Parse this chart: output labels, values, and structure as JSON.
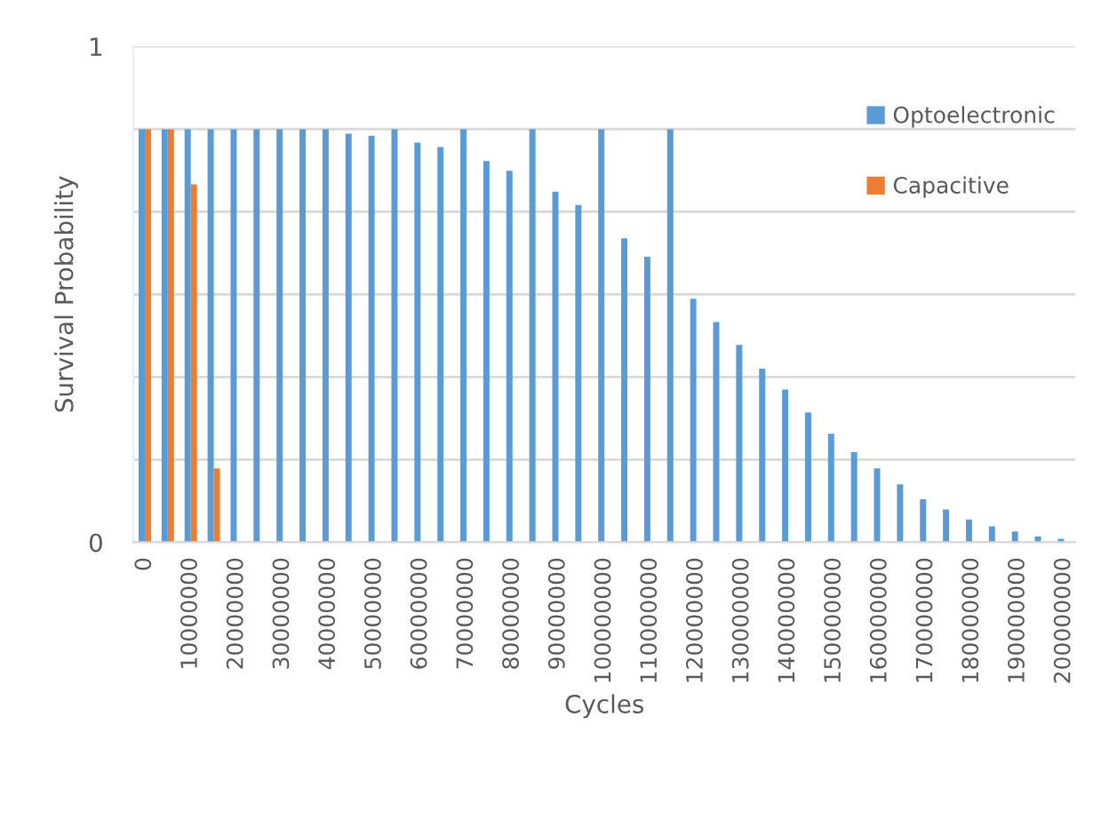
{
  "chart_data": {
    "type": "bar",
    "xlabel": "Cycles",
    "ylabel": "Survival Probability",
    "categories": [
      "0",
      null,
      "10000000",
      null,
      "20000000",
      null,
      "30000000",
      null,
      "40000000",
      null,
      "50000000",
      null,
      "60000000",
      null,
      "70000000",
      null,
      "80000000",
      null,
      "90000000",
      null,
      "100000000",
      null,
      "110000000",
      null,
      "120000000",
      null,
      "130000000",
      null,
      "140000000",
      null,
      "150000000",
      null,
      "160000000",
      null,
      "170000000",
      null,
      "180000000",
      null,
      "190000000",
      null,
      "200000000"
    ],
    "series": [
      {
        "name": "Optoelectronic",
        "color": "#5b9bd5",
        "values": [
          0.833,
          0.833,
          0.833,
          0.833,
          0.833,
          0.833,
          0.833,
          0.833,
          0.833,
          0.824,
          0.82,
          0.833,
          0.806,
          0.797,
          0.833,
          0.769,
          0.749,
          0.833,
          0.707,
          0.68,
          0.833,
          0.613,
          0.576,
          0.833,
          0.491,
          0.444,
          0.398,
          0.35,
          0.308,
          0.262,
          0.219,
          0.182,
          0.149,
          0.117,
          0.087,
          0.066,
          0.046,
          0.032,
          0.022,
          0.012,
          0.007
        ]
      },
      {
        "name": "Capacitive",
        "color": "#ed7d31",
        "values": [
          0.833,
          0.833,
          0.722,
          0.149,
          null,
          null,
          null,
          null,
          null,
          null,
          null,
          null,
          null,
          null,
          null,
          null,
          null,
          null,
          null,
          null,
          null,
          null,
          null,
          null,
          null,
          null,
          null,
          null,
          null,
          null,
          null,
          null,
          null,
          null,
          null,
          null,
          null,
          null,
          null,
          null,
          null
        ]
      }
    ],
    "ylim": [
      0,
      1
    ],
    "yticks": [
      0,
      {
        "value": 0.1667,
        "label": null
      },
      {
        "value": 0.3333,
        "label": null
      },
      {
        "value": 0.5,
        "label": null
      },
      {
        "value": 0.6667,
        "label": null
      },
      {
        "value": 0.8333,
        "label": null
      },
      1
    ],
    "grid": "y",
    "legend": "top right"
  }
}
